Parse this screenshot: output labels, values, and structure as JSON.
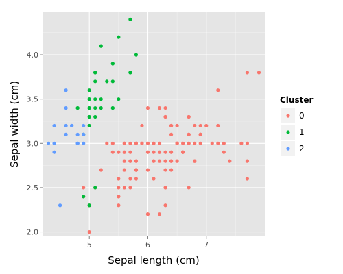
{
  "chart_data": {
    "type": "scatter",
    "title": "",
    "xlabel": "Sepal length (cm)",
    "ylabel": "Sepal width (cm)",
    "xlim": [
      4.2,
      8.0
    ],
    "ylim": [
      1.95,
      4.48
    ],
    "x_ticks": [
      5,
      6,
      7
    ],
    "x_tick_labels": [
      "5",
      "6",
      "7"
    ],
    "y_ticks": [
      2.0,
      2.5,
      3.0,
      3.5,
      4.0
    ],
    "y_tick_labels": [
      "2.0",
      "2.5",
      "3.0",
      "3.5",
      "4.0"
    ],
    "grid": true,
    "background_color": "#e5e5e5",
    "gridline_color": "#ffffff",
    "legend": {
      "title": "Cluster",
      "position": "right",
      "entries": [
        {
          "label": "0",
          "color": "#f8766d"
        },
        {
          "label": "1",
          "color": "#00ba38"
        },
        {
          "label": "2",
          "color": "#619cff"
        }
      ]
    },
    "series": [
      {
        "cluster": "0",
        "color": "#f8766d",
        "points": [
          [
            7.0,
            3.2
          ],
          [
            6.4,
            3.2
          ],
          [
            6.9,
            3.1
          ],
          [
            5.5,
            2.3
          ],
          [
            6.5,
            2.8
          ],
          [
            5.7,
            2.8
          ],
          [
            6.3,
            3.3
          ],
          [
            4.9,
            2.4
          ],
          [
            6.6,
            2.9
          ],
          [
            5.2,
            2.7
          ],
          [
            5.0,
            2.0
          ],
          [
            5.9,
            3.0
          ],
          [
            6.0,
            2.2
          ],
          [
            6.1,
            2.9
          ],
          [
            5.6,
            2.9
          ],
          [
            6.7,
            3.1
          ],
          [
            5.6,
            3.0
          ],
          [
            5.8,
            2.7
          ],
          [
            6.2,
            2.2
          ],
          [
            5.6,
            2.5
          ],
          [
            5.9,
            3.2
          ],
          [
            6.1,
            2.8
          ],
          [
            6.3,
            2.5
          ],
          [
            6.1,
            2.8
          ],
          [
            6.4,
            2.9
          ],
          [
            6.6,
            3.0
          ],
          [
            6.8,
            2.8
          ],
          [
            6.7,
            3.0
          ],
          [
            6.0,
            2.9
          ],
          [
            5.7,
            2.6
          ],
          [
            5.5,
            2.4
          ],
          [
            5.5,
            2.4
          ],
          [
            5.8,
            2.7
          ],
          [
            6.0,
            2.7
          ],
          [
            5.4,
            3.0
          ],
          [
            6.0,
            3.4
          ],
          [
            6.7,
            3.1
          ],
          [
            6.3,
            2.3
          ],
          [
            5.6,
            3.0
          ],
          [
            5.5,
            2.5
          ],
          [
            5.5,
            2.6
          ],
          [
            6.1,
            3.0
          ],
          [
            5.8,
            2.6
          ],
          [
            5.0,
            2.3
          ],
          [
            5.6,
            2.7
          ],
          [
            5.7,
            3.0
          ],
          [
            5.7,
            2.9
          ],
          [
            6.2,
            2.9
          ],
          [
            5.1,
            2.5
          ],
          [
            5.7,
            2.8
          ],
          [
            6.3,
            3.3
          ],
          [
            5.8,
            2.7
          ],
          [
            7.1,
            3.0
          ],
          [
            6.3,
            2.9
          ],
          [
            6.5,
            3.0
          ],
          [
            7.6,
            3.0
          ],
          [
            4.9,
            2.5
          ],
          [
            7.3,
            2.9
          ],
          [
            6.7,
            2.5
          ],
          [
            7.2,
            3.6
          ],
          [
            6.5,
            3.2
          ],
          [
            6.4,
            2.7
          ],
          [
            6.8,
            3.0
          ],
          [
            5.7,
            2.5
          ],
          [
            5.8,
            2.8
          ],
          [
            6.4,
            3.2
          ],
          [
            6.5,
            3.0
          ],
          [
            7.7,
            3.8
          ],
          [
            7.7,
            2.6
          ],
          [
            6.0,
            2.2
          ],
          [
            6.9,
            3.2
          ],
          [
            5.6,
            2.8
          ],
          [
            7.7,
            2.8
          ],
          [
            6.3,
            2.7
          ],
          [
            6.7,
            3.3
          ],
          [
            7.2,
            3.2
          ],
          [
            6.2,
            2.8
          ],
          [
            6.1,
            3.0
          ],
          [
            6.4,
            2.8
          ],
          [
            7.2,
            3.0
          ],
          [
            7.4,
            2.8
          ],
          [
            7.9,
            3.8
          ],
          [
            6.4,
            2.8
          ],
          [
            6.3,
            2.8
          ],
          [
            6.1,
            2.6
          ],
          [
            7.7,
            3.0
          ],
          [
            6.3,
            3.4
          ],
          [
            6.4,
            3.1
          ],
          [
            6.0,
            3.0
          ],
          [
            6.9,
            3.1
          ],
          [
            6.7,
            3.1
          ],
          [
            6.9,
            3.1
          ],
          [
            5.8,
            2.7
          ],
          [
            6.8,
            3.2
          ],
          [
            6.7,
            3.3
          ],
          [
            6.7,
            3.0
          ],
          [
            6.3,
            2.5
          ],
          [
            6.5,
            3.0
          ],
          [
            6.2,
            3.4
          ],
          [
            5.9,
            3.0
          ],
          [
            5.8,
            3.0
          ],
          [
            6.6,
            2.9
          ],
          [
            6.8,
            2.8
          ],
          [
            5.4,
            2.9
          ],
          [
            5.5,
            2.9
          ],
          [
            5.8,
            3.0
          ],
          [
            5.3,
            3.0
          ],
          [
            7.3,
            3.0
          ],
          [
            6.2,
            3.0
          ],
          [
            6.5,
            3.0
          ],
          [
            6.9,
            3.0
          ]
        ]
      },
      {
        "cluster": "1",
        "color": "#00ba38",
        "points": [
          [
            5.0,
            3.6
          ],
          [
            5.4,
            3.9
          ],
          [
            5.8,
            4.0
          ],
          [
            5.7,
            4.4
          ],
          [
            5.4,
            3.9
          ],
          [
            5.1,
            3.5
          ],
          [
            5.7,
            3.8
          ],
          [
            5.1,
            3.8
          ],
          [
            5.4,
            3.4
          ],
          [
            5.1,
            3.7
          ],
          [
            5.0,
            3.4
          ],
          [
            5.2,
            3.5
          ],
          [
            5.2,
            3.4
          ],
          [
            5.4,
            3.4
          ],
          [
            5.2,
            4.1
          ],
          [
            5.5,
            4.2
          ],
          [
            5.5,
            3.5
          ],
          [
            5.1,
            3.4
          ],
          [
            5.0,
            3.5
          ],
          [
            5.0,
            3.5
          ],
          [
            5.1,
            3.8
          ],
          [
            5.1,
            3.8
          ],
          [
            5.3,
            3.7
          ],
          [
            5.0,
            3.3
          ],
          [
            4.9,
            3.1
          ],
          [
            4.8,
            3.4
          ],
          [
            4.8,
            3.4
          ],
          [
            5.0,
            3.4
          ],
          [
            5.1,
            3.3
          ],
          [
            4.9,
            2.4
          ],
          [
            5.0,
            2.3
          ],
          [
            5.1,
            2.5
          ],
          [
            5.7,
            3.8
          ],
          [
            5.0,
            3.2
          ],
          [
            5.4,
            3.7
          ]
        ]
      },
      {
        "cluster": "2",
        "color": "#619cff",
        "points": [
          [
            4.9,
            3.0
          ],
          [
            4.7,
            3.2
          ],
          [
            4.6,
            3.1
          ],
          [
            4.6,
            3.4
          ],
          [
            4.4,
            2.9
          ],
          [
            4.9,
            3.1
          ],
          [
            4.8,
            3.0
          ],
          [
            4.3,
            3.0
          ],
          [
            4.6,
            3.6
          ],
          [
            4.8,
            3.1
          ],
          [
            4.4,
            3.0
          ],
          [
            4.4,
            3.2
          ],
          [
            4.5,
            2.3
          ],
          [
            4.8,
            3.0
          ],
          [
            4.6,
            3.2
          ],
          [
            4.7,
            3.2
          ],
          [
            4.9,
            3.2
          ],
          [
            4.8,
            3.0
          ],
          [
            4.9,
            3.1
          ]
        ]
      }
    ]
  }
}
